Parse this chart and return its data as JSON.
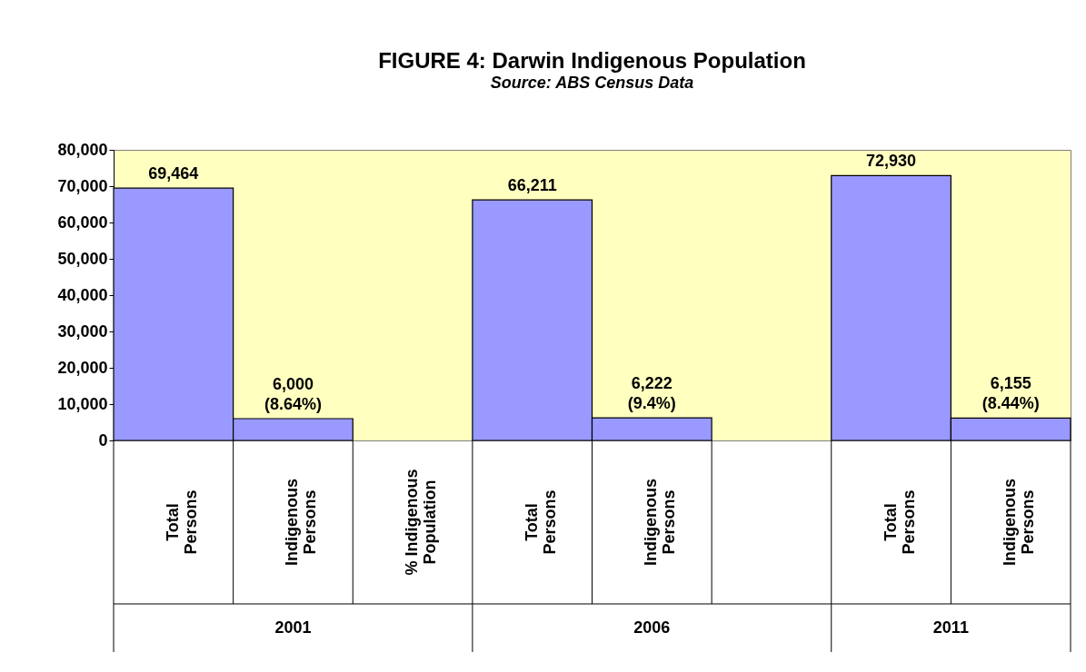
{
  "chart_data": {
    "type": "bar",
    "title": "FIGURE 4: Darwin Indigenous Population",
    "subtitle": "Source: ABS Census Data",
    "categories": [
      "Total Persons",
      "Indigenous Persons",
      "% Indigenous Population",
      "Total Persons",
      "Indigenous Persons",
      null,
      "Total Persons",
      "Indigenous Persons"
    ],
    "values": [
      69464,
      6000,
      null,
      66211,
      6222,
      null,
      72930,
      6155
    ],
    "value_labels": [
      "69,464",
      "6,000\n(8.64%)",
      null,
      "66,211",
      "6,222\n(9.4%)",
      null,
      "72,930",
      "6,155\n(8.44%)"
    ],
    "color": "#9999ff",
    "ylim": [
      0,
      80000
    ],
    "yticks": [
      0,
      {
        "value": 10000,
        "label": "10,000"
      },
      {
        "value": 20000,
        "label": "20,000"
      },
      {
        "value": 30000,
        "label": "30,000"
      },
      {
        "value": 40000,
        "label": "40,000"
      },
      {
        "value": 50000,
        "label": "50,000"
      },
      {
        "value": 60000,
        "label": "60,000"
      },
      {
        "value": 70000,
        "label": "70,000"
      },
      {
        "value": 80000,
        "label": "80,000"
      }
    ],
    "grid": false,
    "annotations": [
      "2001",
      "2006",
      "2011"
    ]
  }
}
